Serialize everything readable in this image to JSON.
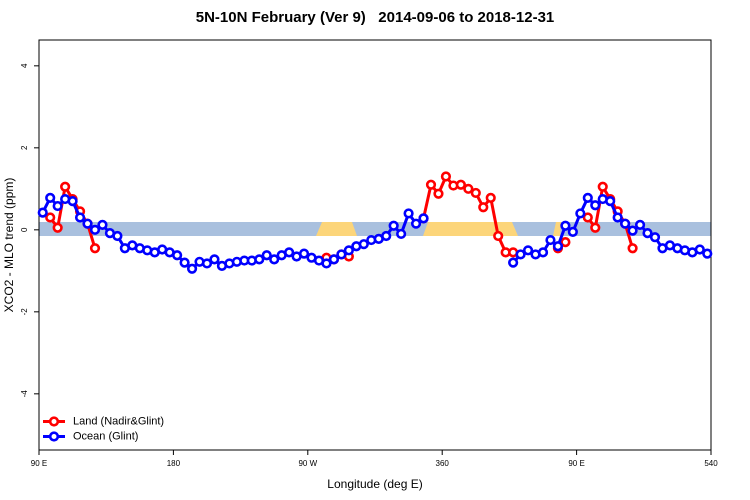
{
  "chart_data": {
    "type": "line",
    "title": "5N-10N February (Ver 9)   2014-09-06 to 2018-12-31",
    "xlabel": "Longitude (deg E)",
    "ylabel": "XCO2 - MLO trend (ppm)",
    "x": [
      92.5,
      97.5,
      102.5,
      107.5,
      112.5,
      117.5,
      122.5,
      127.5,
      132.5,
      137.5,
      142.5,
      147.5,
      152.5,
      157.5,
      162.5,
      167.5,
      172.5,
      177.5,
      182.5,
      187.5,
      192.5,
      197.5,
      202.5,
      207.5,
      212.5,
      217.5,
      222.5,
      227.5,
      232.5,
      237.5,
      242.5,
      247.5,
      252.5,
      257.5,
      262.5,
      267.5,
      272.5,
      277.5,
      282.5,
      287.5,
      292.5,
      297.5,
      302.5,
      307.5,
      312.5,
      317.5,
      322.5,
      327.5,
      332.5,
      337.5,
      342.5,
      347.5,
      352.5,
      357.5,
      362.5,
      367.5,
      372.5,
      377.5,
      382.5,
      387.5,
      392.5,
      397.5,
      402.5,
      407.5,
      412.5,
      417.5,
      422.5,
      427.5,
      432.5,
      437.5,
      442.5,
      447.5,
      452.5,
      457.5,
      462.5,
      467.5,
      472.5,
      477.5,
      482.5,
      487.5,
      492.5,
      497.5,
      502.5,
      507.5,
      512.5,
      517.5,
      522.5,
      527.5,
      532.5,
      537.5
    ],
    "series": [
      {
        "name": "Land (Nadir&Glint)",
        "color": "#ff0000",
        "values": [
          null,
          0.3,
          0.05,
          1.05,
          0.75,
          0.45,
          0.15,
          -0.45,
          null,
          null,
          null,
          null,
          null,
          null,
          null,
          null,
          null,
          null,
          null,
          null,
          null,
          null,
          null,
          null,
          null,
          null,
          null,
          null,
          null,
          null,
          null,
          null,
          null,
          null,
          null,
          null,
          null,
          null,
          -0.68,
          -0.72,
          -0.6,
          -0.65,
          null,
          null,
          null,
          null,
          null,
          null,
          null,
          null,
          null,
          0.28,
          1.1,
          0.88,
          1.3,
          1.08,
          1.1,
          1.0,
          0.9,
          0.55,
          0.78,
          -0.15,
          -0.55,
          -0.55,
          null,
          null,
          null,
          null,
          null,
          -0.45,
          -0.3,
          null,
          null,
          0.3,
          0.05,
          1.05,
          0.75,
          0.45,
          0.15,
          -0.45,
          null,
          null,
          null,
          null,
          null,
          null,
          null,
          null,
          null,
          null
        ]
      },
      {
        "name": "Ocean (Glint)",
        "color": "#0000ff",
        "values": [
          0.42,
          0.78,
          0.58,
          0.75,
          0.7,
          0.3,
          0.15,
          0.0,
          0.12,
          -0.08,
          -0.15,
          -0.45,
          -0.38,
          -0.45,
          -0.5,
          -0.55,
          -0.48,
          -0.55,
          -0.62,
          -0.8,
          -0.95,
          -0.78,
          -0.82,
          -0.72,
          -0.88,
          -0.82,
          -0.78,
          -0.75,
          -0.75,
          -0.72,
          -0.62,
          -0.72,
          -0.62,
          -0.55,
          -0.65,
          -0.58,
          -0.68,
          -0.75,
          -0.82,
          -0.72,
          -0.6,
          -0.5,
          -0.4,
          -0.35,
          -0.25,
          -0.22,
          -0.15,
          0.1,
          -0.1,
          0.4,
          0.15,
          0.28,
          null,
          null,
          null,
          null,
          null,
          null,
          null,
          null,
          null,
          null,
          null,
          -0.8,
          -0.6,
          -0.5,
          -0.6,
          -0.55,
          -0.25,
          -0.4,
          0.1,
          -0.05,
          0.4,
          0.78,
          0.6,
          0.75,
          0.7,
          0.3,
          0.15,
          -0.02,
          0.12,
          -0.08,
          -0.18,
          -0.45,
          -0.38,
          -0.45,
          -0.5,
          -0.55,
          -0.48,
          -0.58
        ]
      }
    ],
    "xlim": [
      90,
      540
    ],
    "xticks": [
      {
        "value": 90,
        "label": "90 E"
      },
      180,
      {
        "value": 270,
        "label": "90 W"
      },
      360,
      {
        "value": 450,
        "label": "90 E"
      },
      540
    ],
    "ylim": [
      -5.37,
      4.63
    ],
    "yticks": [
      -4,
      -2,
      0,
      2,
      4
    ],
    "legend": "bottomleft"
  }
}
